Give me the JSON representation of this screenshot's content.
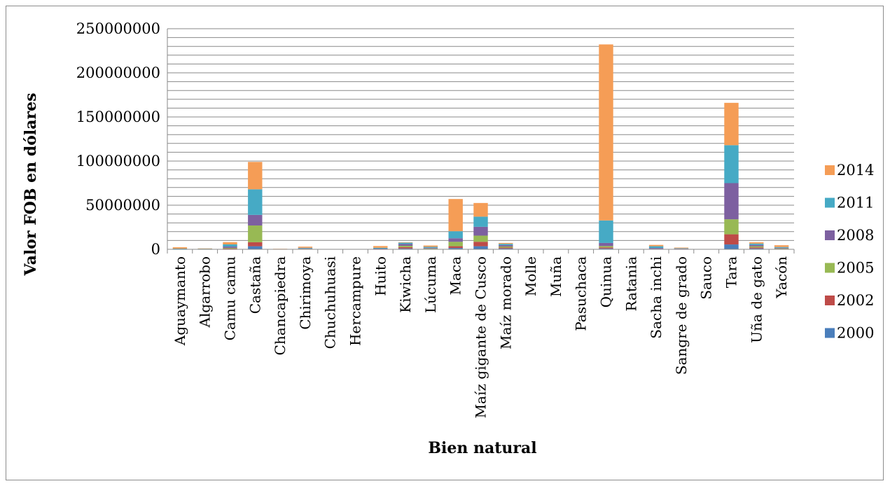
{
  "chart_data": {
    "type": "bar",
    "stacked": true,
    "title": "",
    "xlabel": "Bien natural",
    "ylabel": "Valor FOB en dólares",
    "ylim": [
      0,
      250000000
    ],
    "yticks": [
      "0",
      "50000000",
      "100000000",
      "150000000",
      "200000000",
      "250000000"
    ],
    "grid": true,
    "legend_position": "right",
    "categories": [
      "Aguaymanto",
      "Algarrobo",
      "Camu camu",
      "Castaña",
      "Chancapiedra",
      "Chirimoya",
      "Chuchuhuasi",
      "Hercampure",
      "Huito",
      "Kiwicha",
      "Lúcuma",
      "Maca",
      "Maíz gigante de Cusco",
      "Maíz morado",
      "Molle",
      "Muña",
      "Pasuchaca",
      "Quinua",
      "Ratania",
      "Sacha inchi",
      "Sangre de grado",
      "Sauco",
      "Tara",
      "Uña de gato",
      "Yacón"
    ],
    "series": [
      {
        "name": "2000",
        "color": "#4a7ebb",
        "values": [
          0,
          200000,
          400000,
          3500000,
          0,
          100000,
          0,
          0,
          0,
          1000000,
          200000,
          1500000,
          3500000,
          1000000,
          0,
          0,
          0,
          1000000,
          0,
          0,
          100000,
          0,
          5500000,
          1000000,
          300000
        ]
      },
      {
        "name": "2002",
        "color": "#be4b48",
        "values": [
          0,
          200000,
          500000,
          4500000,
          0,
          200000,
          0,
          0,
          100000,
          1500000,
          300000,
          2000000,
          5000000,
          1000000,
          0,
          0,
          0,
          1200000,
          0,
          0,
          200000,
          0,
          11500000,
          1200000,
          300000
        ]
      },
      {
        "name": "2005",
        "color": "#98b954",
        "values": [
          100000,
          100000,
          700000,
          19000000,
          0,
          300000,
          0,
          0,
          200000,
          1500000,
          500000,
          5000000,
          7000000,
          1200000,
          0,
          0,
          0,
          1500000,
          0,
          500000,
          300000,
          0,
          17000000,
          1300000,
          500000
        ]
      },
      {
        "name": "2008",
        "color": "#7d60a0",
        "values": [
          200000,
          100000,
          1500000,
          12000000,
          100000,
          500000,
          0,
          0,
          500000,
          2000000,
          800000,
          4000000,
          10000000,
          1500000,
          0,
          0,
          0,
          3500000,
          0,
          1000000,
          300000,
          0,
          41000000,
          1500000,
          700000
        ]
      },
      {
        "name": "2011",
        "color": "#46aac5",
        "values": [
          500000,
          200000,
          2500000,
          29000000,
          200000,
          600000,
          0,
          0,
          900000,
          1500000,
          1000000,
          8000000,
          11500000,
          1500000,
          0,
          0,
          0,
          25500000,
          0,
          2000000,
          400000,
          0,
          43000000,
          1500000,
          800000
        ]
      },
      {
        "name": "2014",
        "color": "#f59d56",
        "values": [
          1500000,
          200000,
          2500000,
          31000000,
          300000,
          1300000,
          0,
          0,
          2000000,
          500000,
          1500000,
          36500000,
          15500000,
          1000000,
          0,
          0,
          0,
          199500000,
          0,
          1500000,
          700000,
          0,
          48000000,
          1500000,
          2000000
        ]
      }
    ]
  }
}
